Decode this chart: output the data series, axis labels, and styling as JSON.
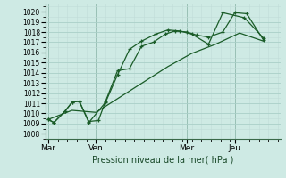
{
  "background_color": "#ceeae4",
  "grid_major_color": "#aacfc8",
  "grid_minor_color": "#c0dcd8",
  "line_color": "#1a5c28",
  "title": "Pression niveau de la mer( hPa )",
  "ylim": [
    1007.5,
    1020.8
  ],
  "yticks": [
    1008,
    1009,
    1010,
    1011,
    1012,
    1013,
    1014,
    1015,
    1016,
    1017,
    1018,
    1019,
    1020
  ],
  "xlim": [
    -0.05,
    4.85
  ],
  "xtick_labels": [
    "Mar",
    "Ven",
    "Mer",
    "Jeu"
  ],
  "xtick_positions": [
    0,
    1.0,
    2.9,
    3.9
  ],
  "vline_positions": [
    0,
    1.0,
    2.9,
    3.9
  ],
  "series1_x": [
    0.0,
    0.12,
    0.35,
    0.5,
    0.65,
    0.85,
    1.05,
    1.2,
    1.45,
    1.7,
    1.95,
    2.2,
    2.45,
    2.65,
    2.9,
    3.1,
    3.35,
    3.65,
    3.9,
    4.15,
    4.5
  ],
  "series1_y": [
    1009.4,
    1009.1,
    1010.2,
    1011.1,
    1011.2,
    1009.2,
    1009.3,
    1011.2,
    1014.2,
    1014.4,
    1016.6,
    1017.0,
    1017.8,
    1018.1,
    1018.0,
    1017.7,
    1017.5,
    1018.0,
    1019.9,
    1019.8,
    1017.2
  ],
  "series2_x": [
    0.0,
    0.12,
    0.35,
    0.5,
    0.65,
    0.85,
    1.2,
    1.45,
    1.7,
    1.95,
    2.25,
    2.5,
    2.75,
    3.0,
    3.35,
    3.65,
    4.1,
    4.5
  ],
  "series2_y": [
    1009.4,
    1009.1,
    1010.2,
    1011.1,
    1011.2,
    1009.1,
    1011.1,
    1013.8,
    1016.3,
    1017.1,
    1017.8,
    1018.2,
    1018.1,
    1017.8,
    1016.8,
    1019.9,
    1019.4,
    1017.4
  ],
  "series3_x": [
    0.0,
    0.5,
    1.0,
    1.5,
    2.0,
    2.5,
    3.0,
    3.5,
    4.0,
    4.5
  ],
  "series3_y": [
    1009.4,
    1010.3,
    1010.1,
    1011.6,
    1013.1,
    1014.6,
    1015.9,
    1016.8,
    1017.9,
    1017.1
  ]
}
